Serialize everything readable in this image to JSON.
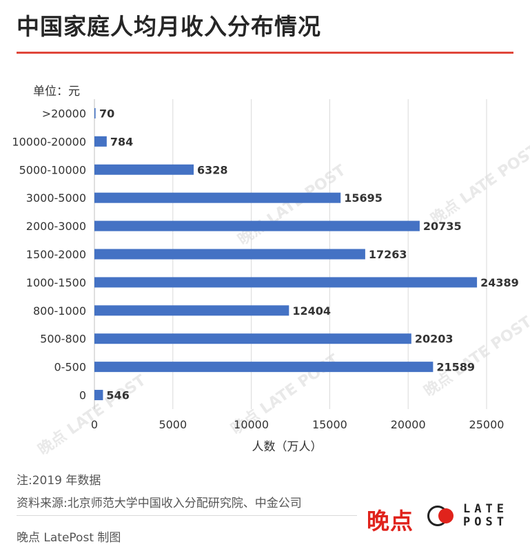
{
  "title": "中国家庭人均月收入分布情况",
  "unit_label": "单位：元",
  "note": "注:2019 年数据",
  "source": "资料来源:北京师范大学中国收入分配研究院、中金公司",
  "credit": "晚点 LatePost 制图",
  "logo": {
    "cn": "晚点",
    "en_line1": "LATE",
    "en_line2": "POST"
  },
  "watermark": {
    "cn": "晚点",
    "en": "LATE POST"
  },
  "colors": {
    "bar": "#4472c4",
    "accent": "#e0463a",
    "logo_red": "#e0231c",
    "grid": "#d9d9d9"
  },
  "chart_data": {
    "type": "bar",
    "orientation": "horizontal",
    "title": "中国家庭人均月收入分布情况",
    "xlabel": "人数（万人）",
    "ylabel": "",
    "categories": [
      ">20000",
      "10000-20000",
      "5000-10000",
      "3000-5000",
      "2000-3000",
      "1500-2000",
      "1000-1500",
      "800-1000",
      "500-800",
      "0-500",
      "0"
    ],
    "values": [
      70,
      784,
      6328,
      15695,
      20735,
      17263,
      24389,
      12404,
      20203,
      21589,
      546
    ],
    "xlim": [
      0,
      25000
    ],
    "xticks": [
      0,
      5000,
      10000,
      15000,
      20000,
      25000
    ],
    "grid": true,
    "data_labels": true
  }
}
